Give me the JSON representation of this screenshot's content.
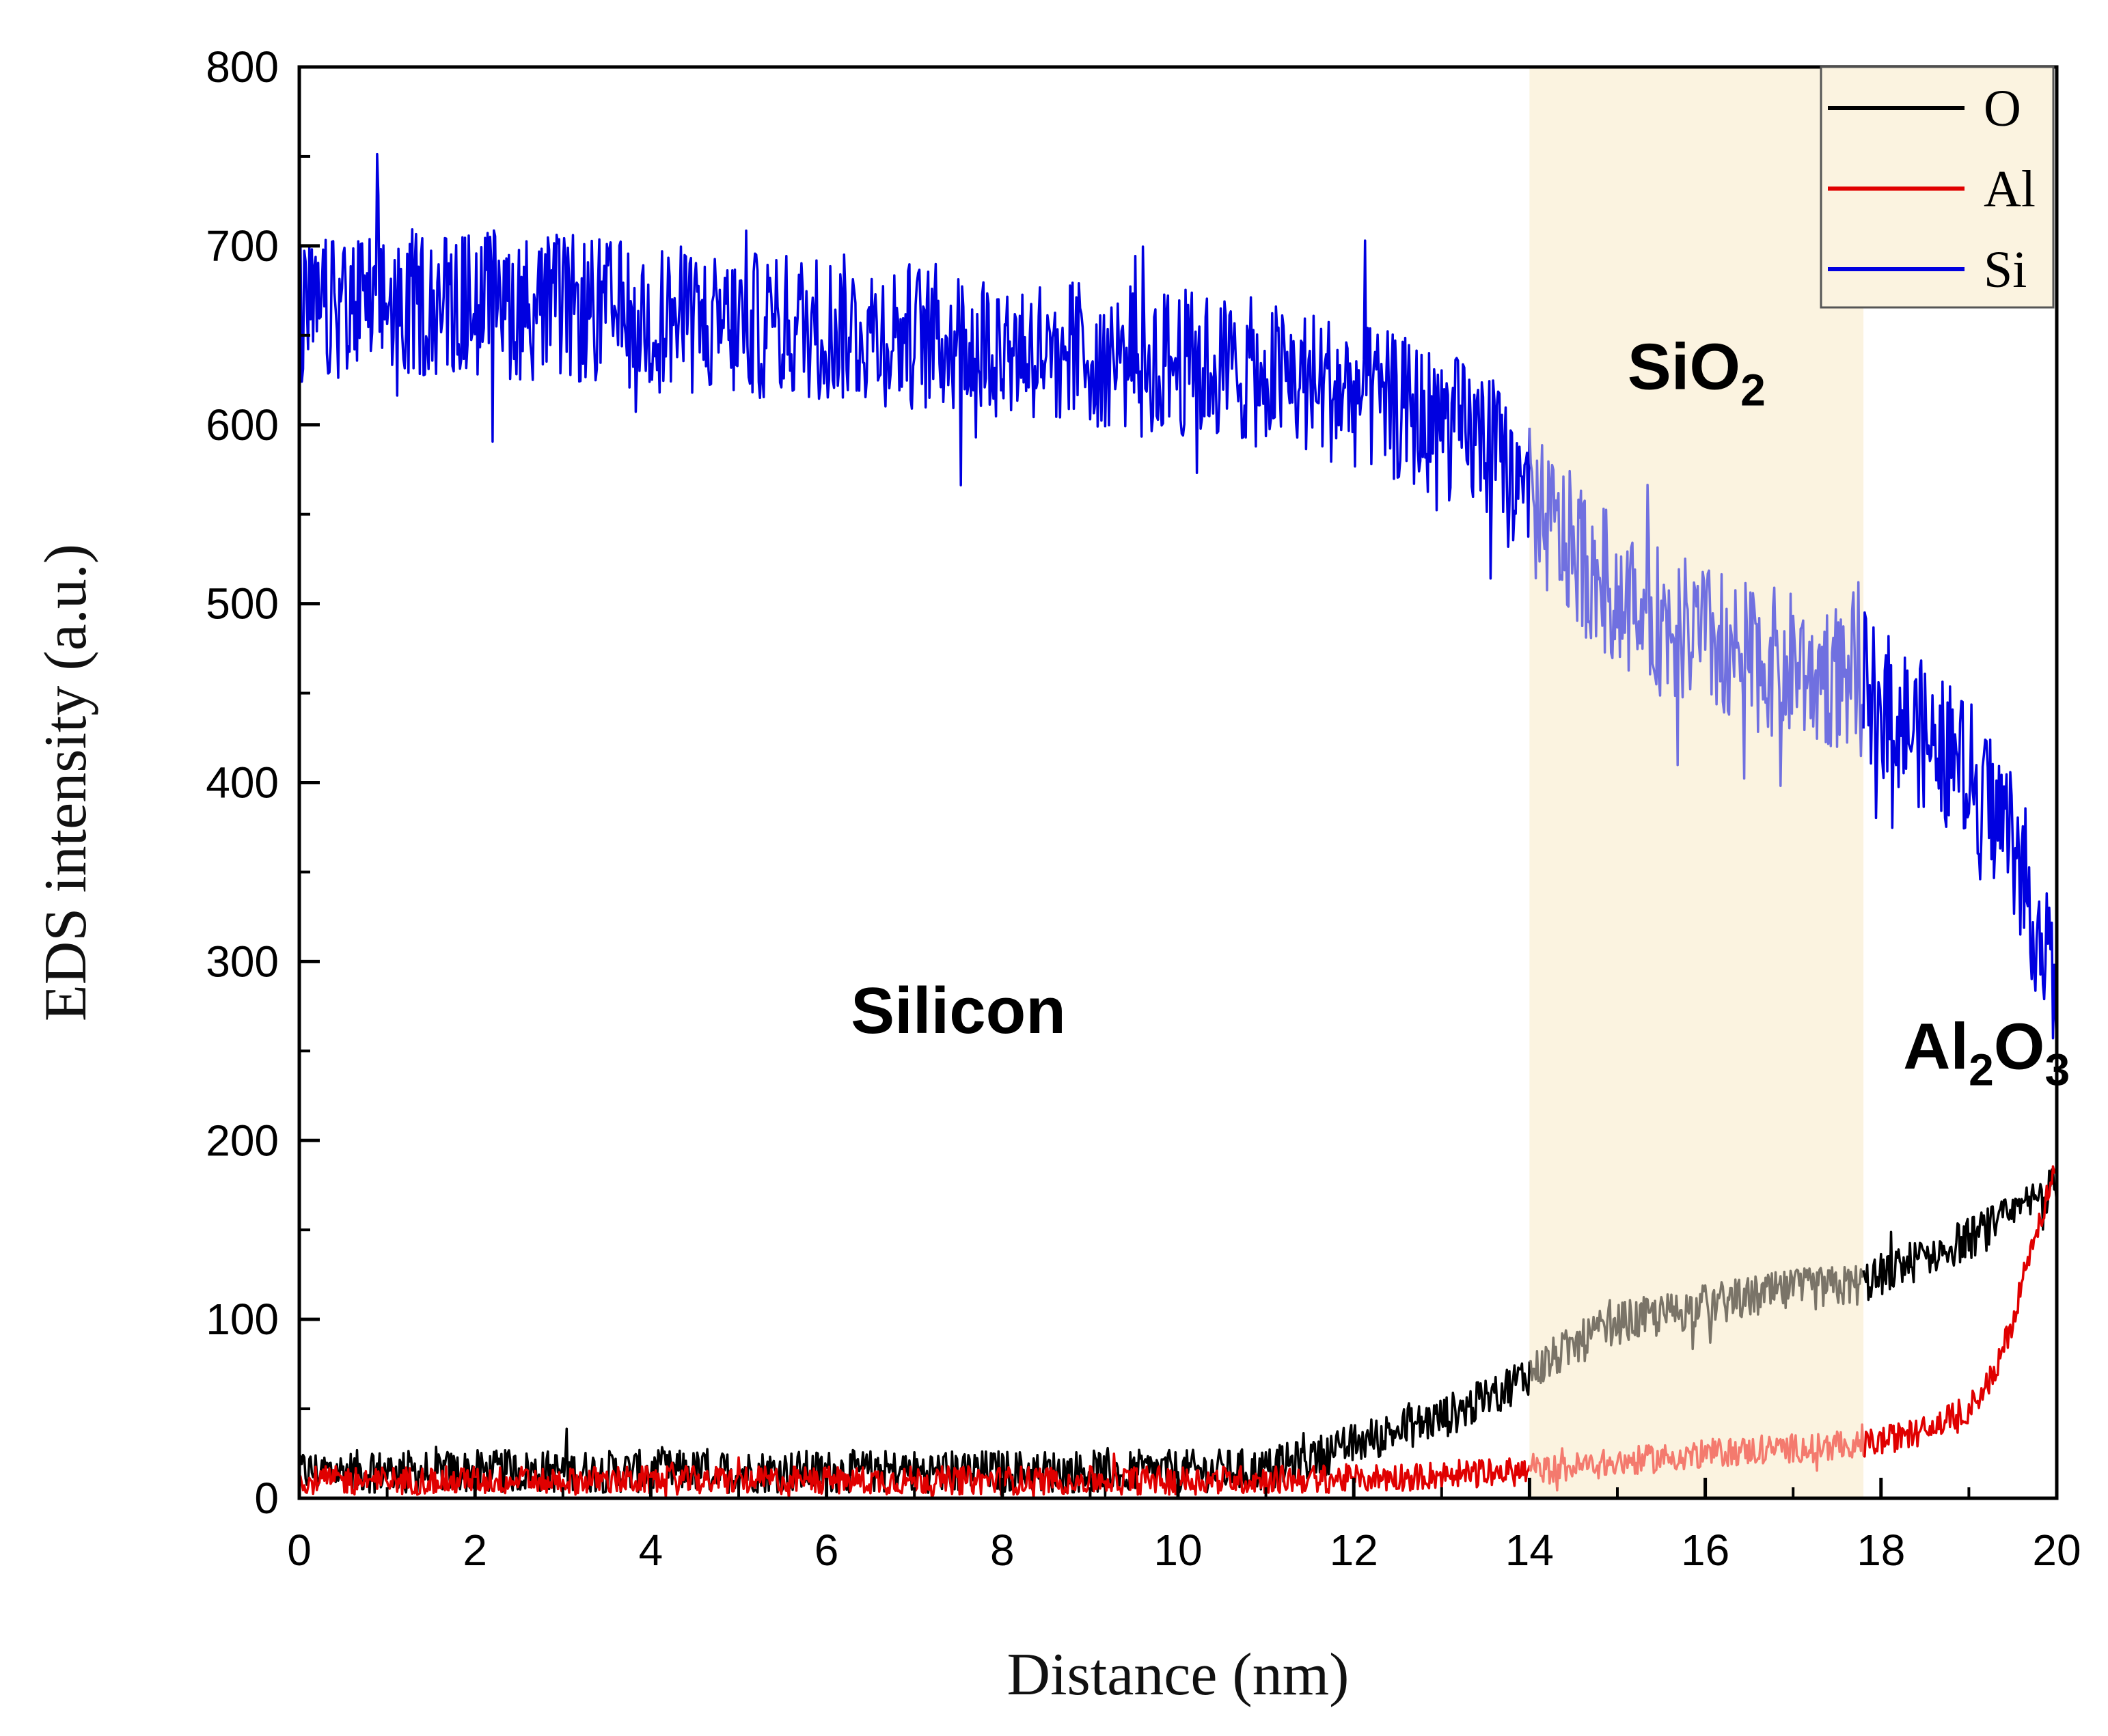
{
  "chart_data": {
    "type": "line",
    "title": "",
    "xlabel": "Distance (nm)",
    "ylabel": "EDS intensity (a.u.)",
    "xlim": [
      0,
      20
    ],
    "ylim": [
      0,
      800
    ],
    "x_ticks": [
      0,
      2,
      4,
      6,
      8,
      10,
      12,
      14,
      16,
      18,
      20
    ],
    "x_tick_labels": [
      "0",
      "2",
      "4",
      "6",
      "8",
      "10",
      "12",
      "14",
      "16",
      "18",
      "20"
    ],
    "y_ticks": [
      0,
      100,
      200,
      300,
      400,
      500,
      600,
      700,
      800
    ],
    "y_tick_labels": [
      "0",
      "100",
      "200",
      "300",
      "400",
      "500",
      "600",
      "700",
      "800"
    ],
    "grid": false,
    "legend_position": "top-right",
    "shaded_region": {
      "x_range": [
        14,
        17.8
      ],
      "color": "#fbf3e0"
    },
    "region_labels": [
      {
        "name": "silicon",
        "text": "Silicon",
        "x": 7.5,
        "y": 260
      },
      {
        "name": "sio2",
        "text": "SiO",
        "sub": "2",
        "x": 15.9,
        "y": 620
      },
      {
        "name": "al2o3",
        "text": "Al",
        "sub1": "2",
        "text2": "O",
        "sub2": "3",
        "x": 19.2,
        "y": 240
      }
    ],
    "series": [
      {
        "name": "O",
        "color": "#000000",
        "shaded_color": "#7a7468",
        "noise": 12,
        "points": [
          [
            0,
            15
          ],
          [
            2,
            15
          ],
          [
            4,
            15
          ],
          [
            6,
            15
          ],
          [
            8,
            15
          ],
          [
            10,
            15
          ],
          [
            11,
            16
          ],
          [
            11.5,
            22
          ],
          [
            12,
            30
          ],
          [
            12.5,
            38
          ],
          [
            13,
            45
          ],
          [
            13.5,
            55
          ],
          [
            14,
            70
          ],
          [
            14.5,
            85
          ],
          [
            15,
            98
          ],
          [
            15.5,
            102
          ],
          [
            16,
            108
          ],
          [
            16.5,
            112
          ],
          [
            17,
            116
          ],
          [
            17.5,
            118
          ],
          [
            17.8,
            120
          ],
          [
            18,
            125
          ],
          [
            18.5,
            135
          ],
          [
            19,
            145
          ],
          [
            19.5,
            158
          ],
          [
            20,
            175
          ]
        ]
      },
      {
        "name": "Al",
        "color": "#e00000",
        "shaded_color": "#f47a6e",
        "noise": 8,
        "points": [
          [
            0,
            10
          ],
          [
            2,
            10
          ],
          [
            4,
            10
          ],
          [
            6,
            10
          ],
          [
            8,
            10
          ],
          [
            10,
            10
          ],
          [
            12,
            11
          ],
          [
            13,
            13
          ],
          [
            14,
            15
          ],
          [
            15,
            20
          ],
          [
            16,
            25
          ],
          [
            17,
            28
          ],
          [
            17.8,
            30
          ],
          [
            18,
            32
          ],
          [
            18.5,
            38
          ],
          [
            19,
            50
          ],
          [
            19.3,
            70
          ],
          [
            19.5,
            100
          ],
          [
            19.7,
            140
          ],
          [
            20,
            185
          ]
        ]
      },
      {
        "name": "Si",
        "color": "#0000e0",
        "shaded_color": "#7070e0",
        "noise": 42,
        "points": [
          [
            0,
            660
          ],
          [
            1,
            668
          ],
          [
            2,
            668
          ],
          [
            3,
            665
          ],
          [
            4,
            660
          ],
          [
            5,
            655
          ],
          [
            6,
            655
          ],
          [
            7,
            650
          ],
          [
            8,
            645
          ],
          [
            9,
            640
          ],
          [
            10,
            635
          ],
          [
            11,
            628
          ],
          [
            12,
            618
          ],
          [
            13,
            600
          ],
          [
            13.5,
            590
          ],
          [
            14,
            555
          ],
          [
            14.5,
            530
          ],
          [
            15,
            505
          ],
          [
            15.5,
            490
          ],
          [
            16,
            480
          ],
          [
            16.5,
            470
          ],
          [
            17,
            465
          ],
          [
            17.5,
            460
          ],
          [
            17.8,
            455
          ],
          [
            18,
            445
          ],
          [
            18.5,
            425
          ],
          [
            19,
            405
          ],
          [
            19.5,
            370
          ],
          [
            20,
            280
          ]
        ]
      }
    ]
  }
}
